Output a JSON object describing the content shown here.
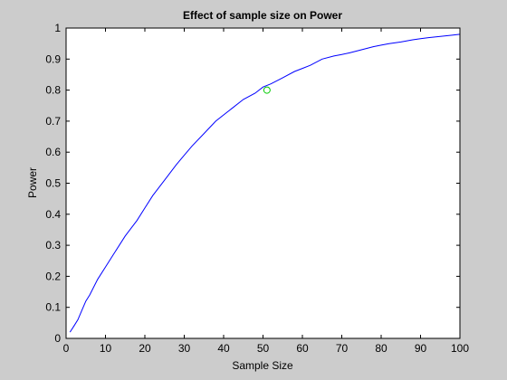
{
  "chart_data": {
    "type": "line",
    "title": "Effect of sample size on Power",
    "xlabel": "Sample Size",
    "ylabel": "Power",
    "xlim": [
      0,
      100
    ],
    "ylim": [
      0,
      1
    ],
    "xticks": [
      "0",
      "10",
      "20",
      "30",
      "40",
      "50",
      "60",
      "70",
      "80",
      "90",
      "100"
    ],
    "yticks": [
      "0",
      "0.1",
      "0.2",
      "0.3",
      "0.4",
      "0.5",
      "0.6",
      "0.7",
      "0.8",
      "0.9",
      "1"
    ],
    "grid": false,
    "series": [
      {
        "color": "#0000ff",
        "x": [
          1,
          2,
          3,
          4,
          5,
          6,
          8,
          10,
          12,
          15,
          18,
          20,
          22,
          25,
          28,
          30,
          32,
          35,
          38,
          40,
          42,
          45,
          48,
          50,
          52,
          55,
          58,
          60,
          62,
          65,
          68,
          70,
          72,
          75,
          78,
          80,
          82,
          85,
          88,
          90,
          92,
          95,
          98,
          100
        ],
        "y": [
          0.02,
          0.04,
          0.06,
          0.09,
          0.12,
          0.14,
          0.19,
          0.23,
          0.27,
          0.33,
          0.38,
          0.42,
          0.46,
          0.51,
          0.56,
          0.59,
          0.62,
          0.66,
          0.7,
          0.72,
          0.74,
          0.77,
          0.79,
          0.81,
          0.82,
          0.84,
          0.86,
          0.87,
          0.88,
          0.9,
          0.91,
          0.915,
          0.92,
          0.93,
          0.94,
          0.945,
          0.95,
          0.955,
          0.962,
          0.966,
          0.969,
          0.973,
          0.977,
          0.98
        ]
      }
    ],
    "markers": [
      {
        "x": 51,
        "y": 0.8,
        "color": "#00cc00",
        "shape": "circle"
      }
    ]
  }
}
